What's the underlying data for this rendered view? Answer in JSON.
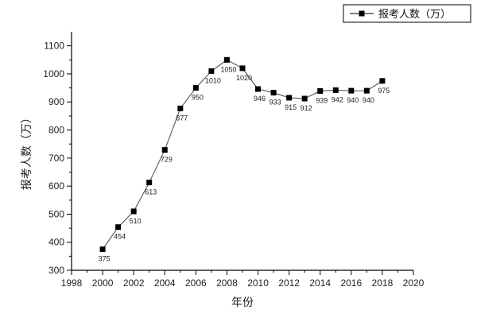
{
  "chart_data": {
    "type": "line",
    "xlabel": "年份",
    "ylabel": "报考人数（万）",
    "xlim": [
      1998,
      2020
    ],
    "ylim": [
      300,
      1150
    ],
    "xticks": [
      1998,
      2000,
      2002,
      2004,
      2006,
      2008,
      2010,
      2012,
      2014,
      2016,
      2018,
      2020
    ],
    "yticks": [
      300,
      400,
      500,
      600,
      700,
      800,
      900,
      1000,
      1100
    ],
    "xtick_labels": [
      "1998",
      "2000",
      "2002",
      "2004",
      "2006",
      "2008",
      "2010",
      "2012",
      "2014",
      "2016",
      "2018",
      "2020"
    ],
    "ytick_labels": [
      "300",
      "400",
      "500",
      "600",
      "700",
      "800",
      "900",
      "1000",
      "1100"
    ],
    "grid": false,
    "legend_position": "top-right",
    "colors": {
      "line": "#555555",
      "marker": "#000000",
      "axis": "#000000"
    },
    "marker": "square",
    "series": [
      {
        "name": "报考人数（万）",
        "x": [
          2000,
          2001,
          2002,
          2003,
          2004,
          2005,
          2006,
          2007,
          2008,
          2009,
          2010,
          2011,
          2012,
          2013,
          2014,
          2015,
          2016,
          2017,
          2018
        ],
        "y": [
          375,
          454,
          510,
          613,
          729,
          877,
          950,
          1010,
          1050,
          1020,
          946,
          933,
          915,
          912,
          939,
          942,
          940,
          940,
          975
        ],
        "labels": [
          "375",
          "454",
          "510",
          "613",
          "729",
          "877",
          "950",
          "1010",
          "1050",
          "1020",
          "946",
          "933",
          "915",
          "912",
          "939",
          "942",
          "940",
          "940",
          "975"
        ]
      }
    ]
  }
}
